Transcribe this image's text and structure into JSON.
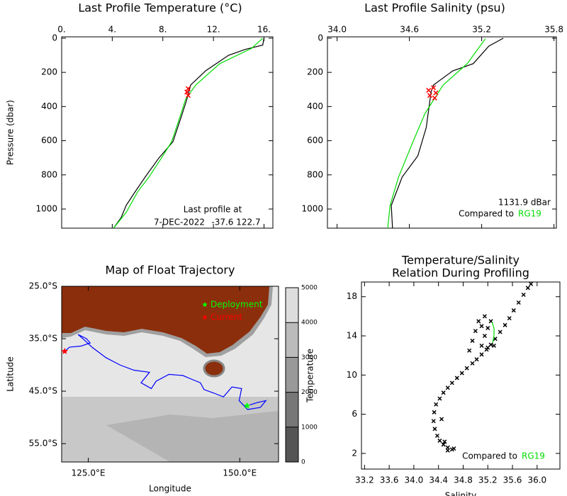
{
  "chart_data": [
    {
      "type": "profile",
      "title": "Last Profile Temperature (°C)",
      "ylabel": "Pressure (dbar)",
      "xlim": [
        0,
        16.7
      ],
      "xticks": [
        {
          "value": 0,
          "label": "0."
        },
        {
          "value": 4,
          "label": "4."
        },
        {
          "value": 8,
          "label": "8."
        },
        {
          "value": 12,
          "label": "12."
        },
        {
          "value": 16,
          "label": "16."
        }
      ],
      "ylim": [
        1112,
        -8
      ],
      "yticks": [
        0,
        200,
        400,
        600,
        800,
        1000
      ],
      "series": [
        {
          "color": "#000000",
          "pressure": [
            0,
            40,
            66,
            100,
            190,
            274,
            357,
            450,
            606,
            700,
            813,
            900,
            979,
            1050,
            1112
          ],
          "values": [
            16.0,
            15.9,
            14.5,
            13.2,
            11.4,
            10.2,
            9.9,
            9.5,
            8.8,
            7.7,
            6.6,
            5.8,
            5.1,
            4.7,
            4.1
          ]
        },
        {
          "color": "#00dd00",
          "pressure": [
            0,
            60,
            149,
            274,
            357,
            450,
            606,
            700,
            813,
            900,
            1020,
            1112
          ],
          "values": [
            15.9,
            15.0,
            12.5,
            10.6,
            9.8,
            9.4,
            8.7,
            7.9,
            6.9,
            6.0,
            5.1,
            4.1
          ]
        },
        {
          "color": "#ff0000",
          "marker": "x",
          "pressure": [
            295,
            315,
            335
          ],
          "values": [
            10.0,
            9.9,
            10.0
          ]
        }
      ],
      "annotations": [
        "Last profile at",
        "7-DEC-2022",
        "-37.6 122.7"
      ]
    },
    {
      "type": "profile",
      "title": "Last Profile Salinity (psu)",
      "xlim": [
        33.92,
        35.82
      ],
      "xticks": [
        {
          "value": 34.0,
          "label": "34.0"
        },
        34.6,
        35.2,
        35.8
      ],
      "ylim": [
        1112,
        -8
      ],
      "yticks": [
        0,
        200,
        400,
        600,
        800,
        1000
      ],
      "series": [
        {
          "color": "#000000",
          "pressure": [
            0,
            46,
            149,
            191,
            274,
            315,
            523,
            689,
            813,
            979,
            1112
          ],
          "values": [
            35.38,
            35.26,
            35.13,
            34.96,
            34.8,
            34.78,
            34.74,
            34.67,
            34.54,
            34.45,
            34.46
          ]
        },
        {
          "color": "#00dd00",
          "pressure": [
            4,
            149,
            274,
            440,
            606,
            813,
            979,
            1112
          ],
          "values": [
            35.23,
            35.08,
            34.88,
            34.73,
            34.63,
            34.51,
            34.44,
            34.42
          ]
        },
        {
          "color": "#ff0000",
          "marker": "x",
          "pressure": [
            290,
            305,
            320,
            335,
            350
          ],
          "values": [
            34.8,
            34.76,
            34.82,
            34.77,
            34.81
          ]
        }
      ],
      "annotations": [
        "1131.9 dBar"
      ],
      "reference": {
        "label": "Compared to",
        "name": "RG19",
        "color": "#00dd00"
      }
    },
    {
      "type": "map",
      "title": "Map of Float Trajectory",
      "xlabel": "Longitude",
      "ylabel": "Latitude",
      "xlim": [
        120.6,
        156.4
      ],
      "xticks": [
        {
          "value": 125,
          "label": "125.0°E"
        },
        {
          "value": 150,
          "label": "150.0°E"
        }
      ],
      "ylim": [
        -58.5,
        -25
      ],
      "yticks": [
        {
          "value": -25,
          "label": "25.0°S"
        },
        {
          "value": -35,
          "label": "35.0°S"
        },
        {
          "value": -45,
          "label": "45.0°S"
        },
        {
          "value": -55,
          "label": "55.0°S"
        }
      ],
      "track": {
        "color": "#0000ff",
        "lon": [
          151.2,
          152.8,
          154.3,
          153.4,
          151.3,
          149.9,
          150.3,
          148.7,
          147.3,
          145.8,
          144.1,
          143.5,
          142.0,
          140.6,
          138.3,
          136.2,
          135.4,
          133.7,
          135.1,
          132.5,
          130.2,
          127.9,
          125.6,
          124.4,
          123.3,
          124.7,
          125.3,
          123.8,
          121.9,
          121.1
        ],
        "lat": [
          -47.8,
          -47.2,
          -46.8,
          -48.1,
          -48.5,
          -46.8,
          -44.5,
          -44.2,
          -46.1,
          -45.4,
          -44.7,
          -43.4,
          -42.7,
          -42.0,
          -41.8,
          -43.1,
          -44.5,
          -43.4,
          -41.4,
          -41.0,
          -40.0,
          -38.6,
          -36.6,
          -35.3,
          -34.2,
          -35.0,
          -35.8,
          -36.4,
          -36.6,
          -37.4
        ]
      },
      "markers": [
        {
          "name": "Deployment",
          "color": "#00ff00",
          "lon": 151.2,
          "lat": -47.8
        },
        {
          "name": "Current",
          "color": "#ff0000",
          "lon": 121.1,
          "lat": -37.4
        }
      ],
      "colorbar": {
        "lim": [
          0,
          5000
        ],
        "ticks": [
          0,
          1000,
          2000,
          3000,
          4000,
          5000
        ],
        "colors": [
          "#555555",
          "#777777",
          "#999999",
          "#bbbbbb",
          "#dddddd"
        ]
      }
    },
    {
      "type": "scatter",
      "title": [
        "Temperature/Salinity",
        "Relation During Profiling"
      ],
      "xlabel": "Salinity",
      "ylabel": "Temperature",
      "xlim": [
        33.15,
        36.37
      ],
      "xticks": [
        33.2,
        33.6,
        {
          "value": 34.0,
          "label": "34.0"
        },
        34.4,
        34.8,
        35.2,
        35.6,
        {
          "value": 36.0,
          "label": "36.0"
        }
      ],
      "ylim": [
        0.4,
        19.5
      ],
      "yticks": [
        2,
        6,
        10,
        14,
        18
      ],
      "series": [
        {
          "color": "#000000",
          "marker": "x",
          "x": [
            34.62,
            34.55,
            34.48,
            34.42,
            34.38,
            34.34,
            34.32,
            34.33,
            34.36,
            34.42,
            34.48,
            34.55,
            34.62,
            34.7,
            34.78,
            34.86,
            34.95,
            35.02,
            35.1,
            35.18,
            35.25,
            35.32,
            35.4,
            35.48,
            35.55,
            35.62,
            35.7,
            35.78,
            35.85,
            35.9,
            34.9,
            34.95,
            35.0,
            35.05,
            35.1,
            35.15,
            35.2,
            35.25,
            35.2,
            35.1,
            35.3,
            35.15,
            34.5,
            34.45,
            34.55,
            34.65
          ],
          "values": [
            2.4,
            2.6,
            2.9,
            3.3,
            3.8,
            4.5,
            5.3,
            6.2,
            7.0,
            7.6,
            8.2,
            8.7,
            9.2,
            9.7,
            10.2,
            10.7,
            11.2,
            11.6,
            12.1,
            12.6,
            13.1,
            13.7,
            14.4,
            15.1,
            15.8,
            16.6,
            17.4,
            18.2,
            18.9,
            19.3,
            12.5,
            13.5,
            14.5,
            15.5,
            13.0,
            16.0,
            14.8,
            15.5,
            12.8,
            15.0,
            13.0,
            14.0,
            3.2,
            5.5,
            2.3,
            2.5
          ]
        },
        {
          "color": "#00dd00",
          "x": [
            35.28,
            35.3,
            35.3,
            35.27
          ],
          "values": [
            13.3,
            14.0,
            14.8,
            15.4
          ]
        }
      ],
      "reference": {
        "label": "Compared to",
        "name": "RG19",
        "color": "#00dd00"
      }
    }
  ]
}
